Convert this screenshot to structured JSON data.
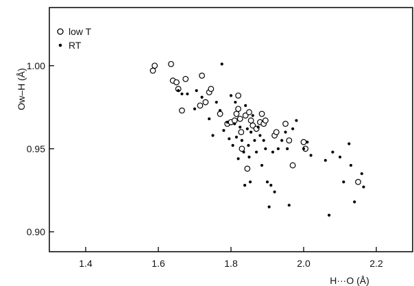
{
  "chart_data": {
    "type": "scatter",
    "xlabel": "H···O (Å)",
    "ylabel": "Ow–H (Å)",
    "xlim": [
      1.3,
      2.3
    ],
    "ylim": [
      0.888,
      1.035
    ],
    "x_ticks": [
      1.4,
      1.6,
      1.8,
      2.0,
      2.2
    ],
    "x_tick_labels": [
      "1.4",
      "1.6",
      "1.8",
      "2.0",
      "2.2"
    ],
    "y_ticks": [
      0.9,
      0.95,
      1.0
    ],
    "y_tick_labels": [
      "0.90",
      "0.95",
      "1.00"
    ],
    "grid": false,
    "legend_position": "top-left",
    "series": [
      {
        "name": "low T",
        "marker": "open-circle",
        "points": [
          [
            1.585,
            0.997
          ],
          [
            1.59,
            1.0
          ],
          [
            1.635,
            1.001
          ],
          [
            1.64,
            0.991
          ],
          [
            1.65,
            0.99
          ],
          [
            1.655,
            0.986
          ],
          [
            1.665,
            0.973
          ],
          [
            1.675,
            0.992
          ],
          [
            1.715,
            0.976
          ],
          [
            1.72,
            0.994
          ],
          [
            1.73,
            0.978
          ],
          [
            1.74,
            0.984
          ],
          [
            1.745,
            0.986
          ],
          [
            1.77,
            0.971
          ],
          [
            1.79,
            0.965
          ],
          [
            1.8,
            0.966
          ],
          [
            1.81,
            0.967
          ],
          [
            1.815,
            0.971
          ],
          [
            1.82,
            0.982
          ],
          [
            1.82,
            0.974
          ],
          [
            1.825,
            0.968
          ],
          [
            1.828,
            0.96
          ],
          [
            1.83,
            0.95
          ],
          [
            1.84,
            0.97
          ],
          [
            1.845,
            0.938
          ],
          [
            1.85,
            0.972
          ],
          [
            1.855,
            0.967
          ],
          [
            1.86,
            0.964
          ],
          [
            1.87,
            0.962
          ],
          [
            1.88,
            0.966
          ],
          [
            1.885,
            0.971
          ],
          [
            1.89,
            0.965
          ],
          [
            1.895,
            0.967
          ],
          [
            1.92,
            0.958
          ],
          [
            1.925,
            0.96
          ],
          [
            1.95,
            0.965
          ],
          [
            1.96,
            0.955
          ],
          [
            1.97,
            0.94
          ],
          [
            2.0,
            0.954
          ],
          [
            2.005,
            0.95
          ],
          [
            2.15,
            0.93
          ]
        ]
      },
      {
        "name": "RT",
        "marker": "filled-dot",
        "points": [
          [
            1.655,
            0.985
          ],
          [
            1.665,
            0.983
          ],
          [
            1.68,
            0.983
          ],
          [
            1.7,
            0.974
          ],
          [
            1.705,
            0.985
          ],
          [
            1.72,
            0.981
          ],
          [
            1.74,
            0.968
          ],
          [
            1.75,
            0.958
          ],
          [
            1.76,
            0.978
          ],
          [
            1.77,
            0.973
          ],
          [
            1.775,
            1.001
          ],
          [
            1.78,
            0.961
          ],
          [
            1.79,
            0.966
          ],
          [
            1.795,
            0.956
          ],
          [
            1.8,
            0.982
          ],
          [
            1.805,
            0.952
          ],
          [
            1.81,
            0.965
          ],
          [
            1.812,
            0.978
          ],
          [
            1.815,
            0.957
          ],
          [
            1.82,
            0.944
          ],
          [
            1.825,
            0.963
          ],
          [
            1.83,
            0.955
          ],
          [
            1.835,
            0.948
          ],
          [
            1.838,
            0.928
          ],
          [
            1.84,
            0.976
          ],
          [
            1.845,
            0.962
          ],
          [
            1.848,
            0.952
          ],
          [
            1.85,
            0.945
          ],
          [
            1.853,
            0.93
          ],
          [
            1.855,
            0.96
          ],
          [
            1.86,
            0.97
          ],
          [
            1.865,
            0.955
          ],
          [
            1.87,
            0.948
          ],
          [
            1.875,
            0.963
          ],
          [
            1.88,
            0.958
          ],
          [
            1.885,
            0.94
          ],
          [
            1.89,
            0.955
          ],
          [
            1.895,
            0.95
          ],
          [
            1.9,
            0.93
          ],
          [
            1.905,
            0.915
          ],
          [
            1.91,
            0.928
          ],
          [
            1.915,
            0.948
          ],
          [
            1.92,
            0.924
          ],
          [
            1.93,
            0.95
          ],
          [
            1.94,
            0.955
          ],
          [
            1.95,
            0.96
          ],
          [
            1.955,
            0.95
          ],
          [
            1.96,
            0.916
          ],
          [
            1.97,
            0.962
          ],
          [
            1.98,
            0.967
          ],
          [
            2.0,
            0.95
          ],
          [
            2.01,
            0.954
          ],
          [
            2.02,
            0.946
          ],
          [
            2.06,
            0.943
          ],
          [
            2.07,
            0.91
          ],
          [
            2.08,
            0.948
          ],
          [
            2.1,
            0.945
          ],
          [
            2.11,
            0.93
          ],
          [
            2.125,
            0.953
          ],
          [
            2.13,
            0.94
          ],
          [
            2.14,
            0.918
          ],
          [
            2.16,
            0.935
          ],
          [
            2.165,
            0.927
          ]
        ]
      }
    ]
  }
}
